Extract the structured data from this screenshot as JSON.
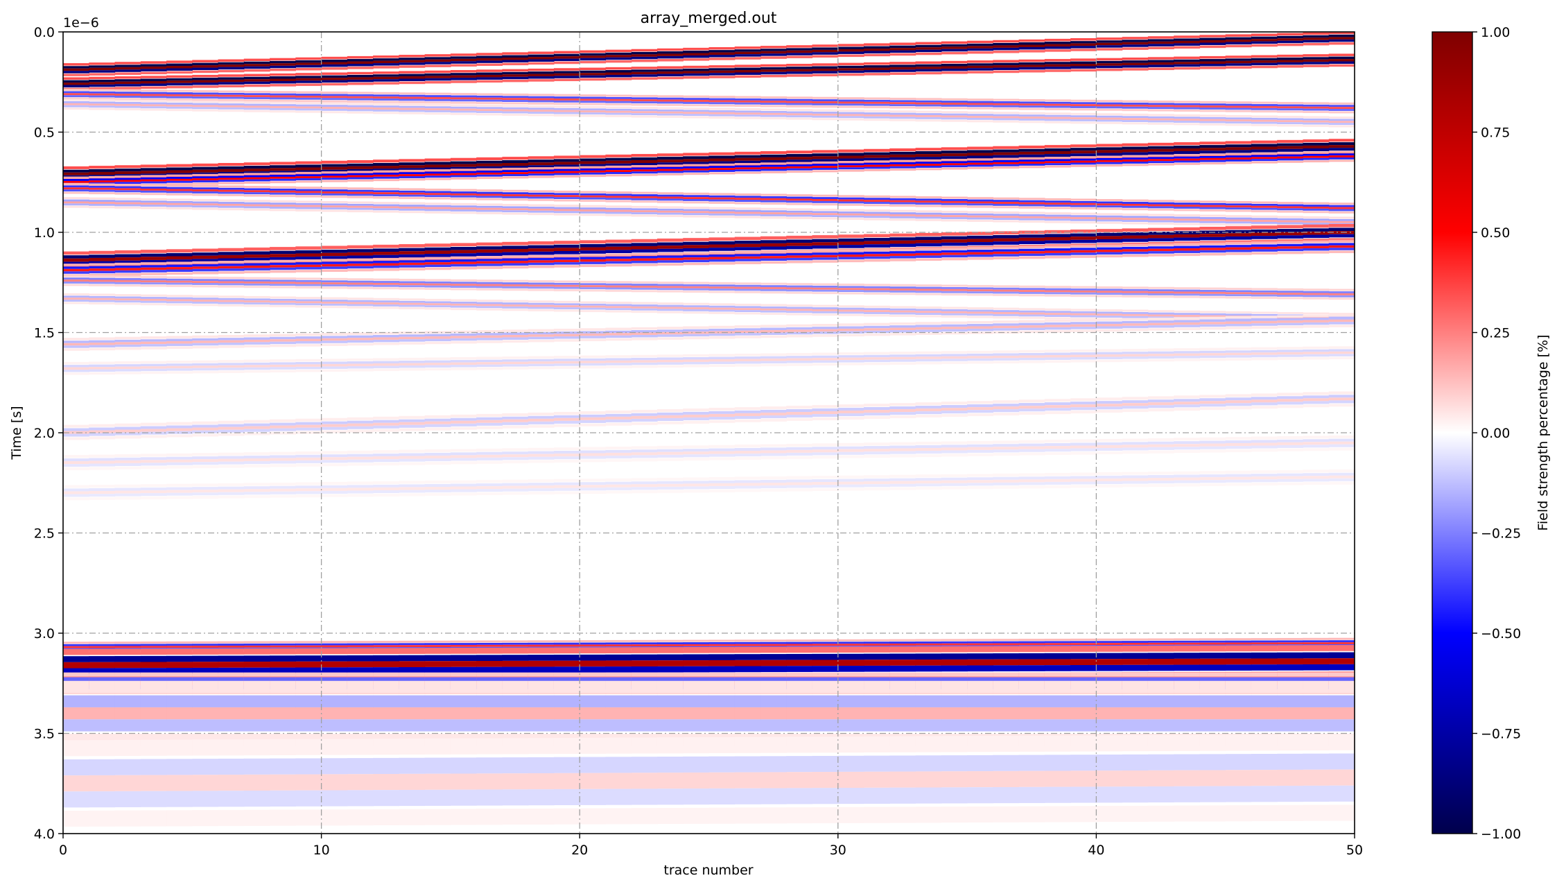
{
  "chart_data": {
    "type": "heatmap",
    "title": "array_merged.out",
    "xlabel": "trace number",
    "ylabel": "Time [s]",
    "y_offset_label": "1e−6",
    "xlim": [
      0,
      50
    ],
    "ylim": [
      4e-06,
      0.0
    ],
    "x_ticks": [
      0,
      10,
      20,
      30,
      40,
      50
    ],
    "x_tick_labels": [
      "0",
      "10",
      "20",
      "30",
      "40",
      "50"
    ],
    "y_ticks": [
      0.0,
      0.5,
      1.0,
      1.5,
      2.0,
      2.5,
      3.0,
      3.5,
      4.0
    ],
    "y_tick_labels": [
      "0.0",
      "0.5",
      "1.0",
      "1.5",
      "2.0",
      "2.5",
      "3.0",
      "3.5",
      "4.0"
    ],
    "grid": true,
    "grid_style": "dash-dot",
    "colorbar": {
      "label": "Field strength percentage [%]",
      "range": [
        -1.0,
        1.0
      ],
      "ticks": [
        1.0,
        0.75,
        0.5,
        0.25,
        0.0,
        -0.25,
        -0.5,
        -0.75,
        -1.0
      ],
      "tick_labels": [
        "1.00",
        "0.75",
        "0.50",
        "0.25",
        "0.00",
        "−0.25",
        "−0.50",
        "−0.75",
        "−1.00"
      ],
      "colormap": "seismic",
      "colors": [
        "#00004c",
        "#0000ff",
        "#ffffff",
        "#ff0000",
        "#7f0000"
      ]
    },
    "n_traces": 50,
    "reflectors": [
      {
        "t_start": 0.19,
        "t_end": 0.03,
        "amplitude": 1.0,
        "width": 0.012
      },
      {
        "t_start": 0.26,
        "t_end": 0.14,
        "amplitude": 1.0,
        "width": 0.012
      },
      {
        "t_start": 0.31,
        "t_end": 0.38,
        "amplitude": 0.35,
        "width": 0.01
      },
      {
        "t_start": 0.36,
        "t_end": 0.45,
        "amplitude": 0.15,
        "width": 0.01
      },
      {
        "t_start": 0.71,
        "t_end": 0.57,
        "amplitude": 1.0,
        "width": 0.014
      },
      {
        "t_start": 0.75,
        "t_end": 0.62,
        "amplitude": 0.5,
        "width": 0.01
      },
      {
        "t_start": 0.78,
        "t_end": 0.88,
        "amplitude": 0.4,
        "width": 0.01
      },
      {
        "t_start": 0.85,
        "t_end": 0.95,
        "amplitude": 0.18,
        "width": 0.01
      },
      {
        "t_start": 1.14,
        "t_end": 1.0,
        "amplitude": 0.9,
        "width": 0.016
      },
      {
        "t_start": 1.19,
        "t_end": 1.07,
        "amplitude": 0.45,
        "width": 0.012
      },
      {
        "t_start": 1.24,
        "t_end": 1.31,
        "amplitude": 0.25,
        "width": 0.01
      },
      {
        "t_start": 1.33,
        "t_end": 1.43,
        "amplitude": 0.15,
        "width": 0.01
      },
      {
        "t_start": 1.56,
        "t_end": 1.44,
        "amplitude": 0.14,
        "width": 0.012
      },
      {
        "t_start": 1.68,
        "t_end": 1.6,
        "amplitude": 0.08,
        "width": 0.012
      },
      {
        "t_start": 2.0,
        "t_end": 1.83,
        "amplitude": 0.1,
        "width": 0.014
      },
      {
        "t_start": 2.15,
        "t_end": 2.05,
        "amplitude": 0.06,
        "width": 0.014
      },
      {
        "t_start": 2.3,
        "t_end": 2.22,
        "amplitude": 0.05,
        "width": 0.014
      },
      {
        "t_start": 3.07,
        "t_end": 3.05,
        "amplitude": 0.4,
        "width": 0.01
      },
      {
        "t_start": 3.16,
        "t_end": 3.14,
        "amplitude": 0.8,
        "width": 0.03
      },
      {
        "t_start": 3.25,
        "t_end": 3.25,
        "amplitude": 0.3,
        "width": 0.02
      },
      {
        "t_start": 3.4,
        "t_end": 3.4,
        "amplitude": 0.15,
        "width": 0.06
      },
      {
        "t_start": 3.75,
        "t_end": 3.72,
        "amplitude": 0.08,
        "width": 0.08
      }
    ]
  }
}
